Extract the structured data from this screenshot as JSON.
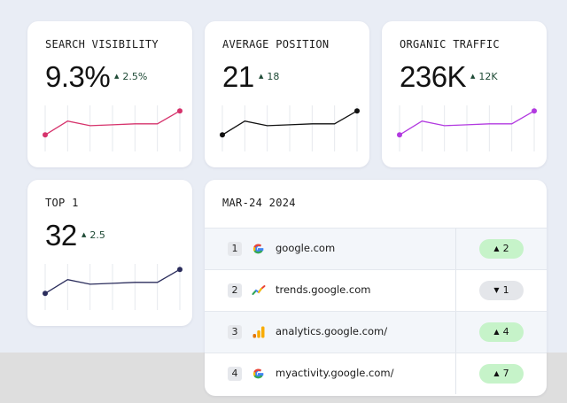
{
  "metrics": [
    {
      "title": "SEARCH VISIBILITY",
      "value": "9.3%",
      "delta": "2.5%",
      "color": "#d6336c",
      "values": [
        18,
        33,
        28,
        29,
        30,
        30,
        44
      ]
    },
    {
      "title": "AVERAGE POSITION",
      "value": "21",
      "delta": "18",
      "color": "#111111",
      "values": [
        18,
        33,
        28,
        29,
        30,
        30,
        44
      ]
    },
    {
      "title": "ORGANIC TRAFFIC",
      "value": "236K",
      "delta": "12K",
      "color": "#b23ae0",
      "values": [
        18,
        33,
        28,
        29,
        30,
        30,
        44
      ]
    },
    {
      "title": "TOP 1",
      "value": "32",
      "delta": "2.5",
      "color": "#2b2d5c",
      "values": [
        18,
        33,
        28,
        29,
        30,
        30,
        44
      ]
    }
  ],
  "rankings": {
    "date": "MAR-24 2024",
    "rows": [
      {
        "rank": "1",
        "icon": "google-icon",
        "site": "google.com",
        "change": "2",
        "direction": "up"
      },
      {
        "rank": "2",
        "icon": "trends-icon",
        "site": "trends.google.com",
        "change": "1",
        "direction": "down"
      },
      {
        "rank": "3",
        "icon": "analytics-icon",
        "site": "analytics.google.com/",
        "change": "4",
        "direction": "up"
      },
      {
        "rank": "4",
        "icon": "google-icon",
        "site": "myactivity.google.com/",
        "change": "7",
        "direction": "up"
      }
    ]
  }
}
